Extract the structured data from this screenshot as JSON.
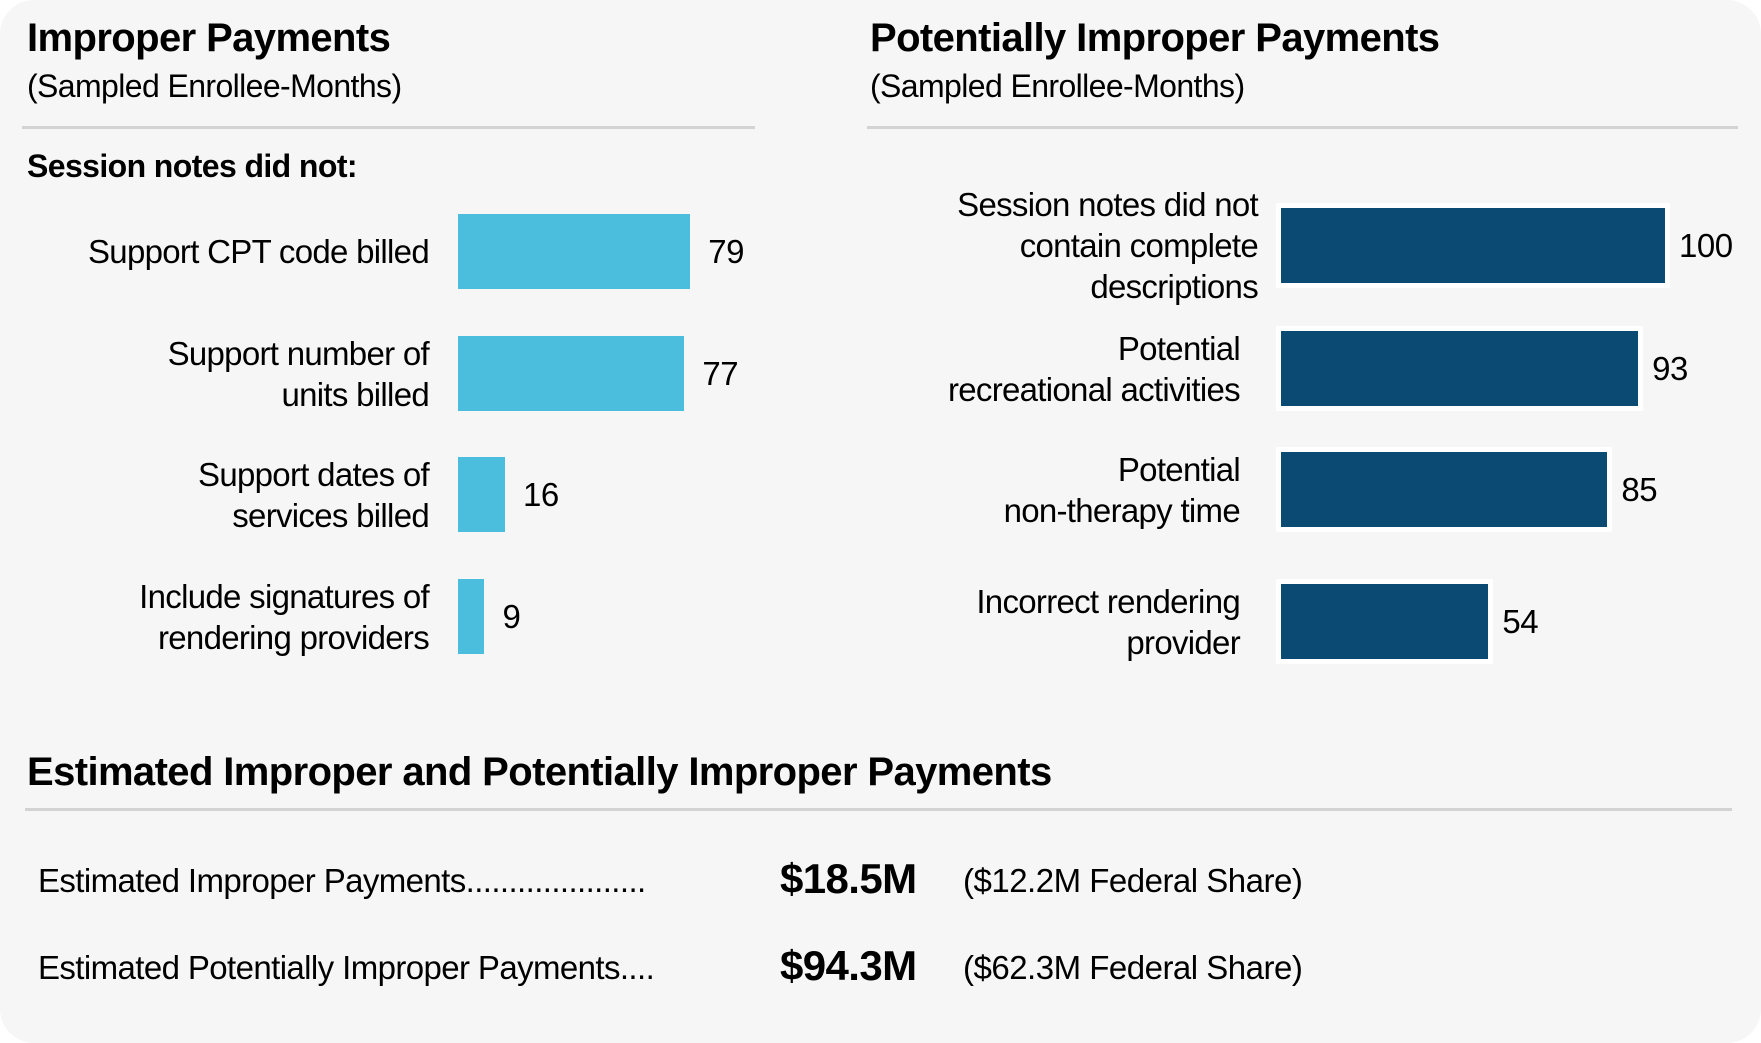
{
  "colors": {
    "background": "#f6f6f6",
    "divider": "#d3d3d3",
    "improper_bar": "#4bbede",
    "potentially_improper_bar": "#0b4a73",
    "bar_outline": "#ffffff"
  },
  "chart_data": [
    {
      "type": "bar",
      "orientation": "horizontal",
      "title": "Improper Payments",
      "subtitle": "(Sampled Enrollee-Months)",
      "section_label": "Session notes did not:",
      "categories": [
        [
          "Support CPT code billed"
        ],
        [
          "Support number of",
          "units billed"
        ],
        [
          "Support dates of",
          "services billed"
        ],
        [
          "Include signatures of",
          "rendering providers"
        ]
      ],
      "values": [
        79,
        77,
        16,
        9
      ],
      "value_labels": [
        "79",
        "77",
        "16",
        "9"
      ],
      "xlabel": "",
      "ylabel": "",
      "xlim": [
        0,
        100
      ],
      "grid": false,
      "legend": "none"
    },
    {
      "type": "bar",
      "orientation": "horizontal",
      "title": "Potentially Improper Payments",
      "subtitle": "(Sampled Enrollee-Months)",
      "categories": [
        [
          "Session notes did not",
          "contain complete",
          "descriptions"
        ],
        [
          "Potential",
          "recreational activities"
        ],
        [
          "Potential",
          "non-therapy time"
        ],
        [
          "Incorrect rendering",
          "provider"
        ]
      ],
      "values": [
        100,
        93,
        85,
        54
      ],
      "value_labels": [
        "100",
        "93",
        "85",
        "54"
      ],
      "xlabel": "",
      "ylabel": "",
      "xlim": [
        0,
        100
      ],
      "grid": false,
      "legend": "none"
    }
  ],
  "estimates": {
    "title": "Estimated Improper and Potentially Improper Payments",
    "rows": [
      {
        "label": "Estimated Improper Payments.....................",
        "amount": "$18.5M",
        "federal_share": "($12.2M Federal Share)"
      },
      {
        "label": "Estimated Potentially Improper Payments....",
        "amount": "$94.3M",
        "federal_share": "($62.3M Federal Share)"
      }
    ]
  }
}
